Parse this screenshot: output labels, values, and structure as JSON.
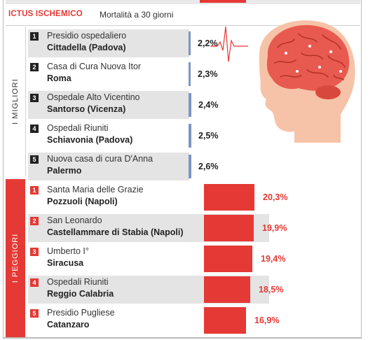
{
  "header": {
    "title": "ICTUS ISCHEMICO",
    "subtitle": "Mortalità a 30 giorni"
  },
  "groups": {
    "best_label": "I MIGLIORI",
    "worst_label": "I PEGGIORI"
  },
  "colors": {
    "accent_red": "#e53935",
    "best_bar": "#7e95c4",
    "row_shade": "#e4e4e4"
  },
  "chart_data": {
    "type": "bar",
    "title": "Mortalità a 30 giorni",
    "unit": "%",
    "series": [
      {
        "name": "I migliori",
        "categories": [
          "Presidio ospedaliero Cittadella (Padova)",
          "Casa di Cura Nuova Itor Roma",
          "Ospedale Alto Vicentino Santorso (Vicenza)",
          "Ospedali Riuniti Schiavonia (Padova)",
          "Nuova casa di cura D'Anna Palermo"
        ],
        "values": [
          2.2,
          2.3,
          2.4,
          2.5,
          2.6
        ]
      },
      {
        "name": "I peggiori",
        "categories": [
          "Santa Maria delle Grazie Pozzuoli (Napoli)",
          "San Leonardo Castellammare di Stabia (Napoli)",
          "Umberto I° Siracusa",
          "Ospedali Riuniti Reggio Calabria",
          "Presidio Pugliese Catanzaro"
        ],
        "values": [
          20.3,
          19.9,
          19.4,
          18.5,
          16.9
        ]
      }
    ]
  },
  "best": [
    {
      "rank": "1",
      "line1": "Presidio ospedaliero",
      "line2": "Cittadella (Padova)",
      "value": 2.2,
      "label": "2,2%"
    },
    {
      "rank": "2",
      "line1": "Casa di Cura Nuova Itor",
      "line2": "Roma",
      "value": 2.3,
      "label": "2,3%"
    },
    {
      "rank": "3",
      "line1": "Ospedale Alto Vicentino",
      "line2": "Santorso (Vicenza)",
      "value": 2.4,
      "label": "2,4%"
    },
    {
      "rank": "4",
      "line1": "Ospedali Riuniti",
      "line2": "Schiavonia (Padova)",
      "value": 2.5,
      "label": "2,5%"
    },
    {
      "rank": "5",
      "line1": "Nuova casa di cura D'Anna",
      "line2": "Palermo",
      "value": 2.6,
      "label": "2,6%"
    }
  ],
  "worst": [
    {
      "rank": "1",
      "line1": "Santa Maria delle Grazie",
      "line2": "Pozzuoli (Napoli)",
      "value": 20.3,
      "label": "20,3%"
    },
    {
      "rank": "2",
      "line1": "San Leonardo",
      "line2": "Castellammare di Stabia (Napoli)",
      "value": 19.9,
      "label": "19,9%"
    },
    {
      "rank": "3",
      "line1": "Umberto I°",
      "line2": "Siracusa",
      "value": 19.4,
      "label": "19,4%"
    },
    {
      "rank": "4",
      "line1": "Ospedali Riuniti",
      "line2": "Reggio Calabria",
      "value": 18.5,
      "label": "18,5%"
    },
    {
      "rank": "5",
      "line1": "Presidio Pugliese",
      "line2": "Catanzaro",
      "value": 16.9,
      "label": "16,9%"
    }
  ],
  "illustration": {
    "icon": "brain-head-icon",
    "pulse": "ecg-pulse-icon"
  }
}
